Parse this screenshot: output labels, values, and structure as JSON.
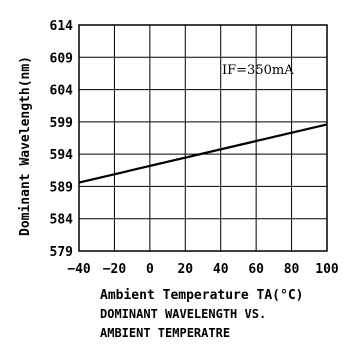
{
  "chart_data": {
    "type": "line",
    "xlabel": "Ambient Temperature TA(°C)",
    "ylabel": "Dominant Wavelength(nm)",
    "xlim": [
      -40,
      100
    ],
    "ylim": [
      579,
      614
    ],
    "x_ticks": [
      -40,
      -20,
      0,
      20,
      40,
      60,
      80,
      100
    ],
    "y_ticks": [
      579,
      584,
      589,
      594,
      599,
      604,
      609,
      614
    ],
    "x_tick_labels": [
      "−40",
      "−20",
      "0",
      "20",
      "40",
      "60",
      "80",
      "100"
    ],
    "y_tick_labels": [
      "579",
      "584",
      "589",
      "594",
      "599",
      "604",
      "609",
      "614"
    ],
    "grid": true,
    "annotation": "IF=350mA",
    "series": [
      {
        "x": [
          -40,
          100
        ],
        "y": [
          589.6,
          598.6
        ]
      }
    ],
    "caption_lines": [
      "DOMINANT WAVELENGTH VS.",
      "AMBIENT TEMPERATRE"
    ]
  }
}
